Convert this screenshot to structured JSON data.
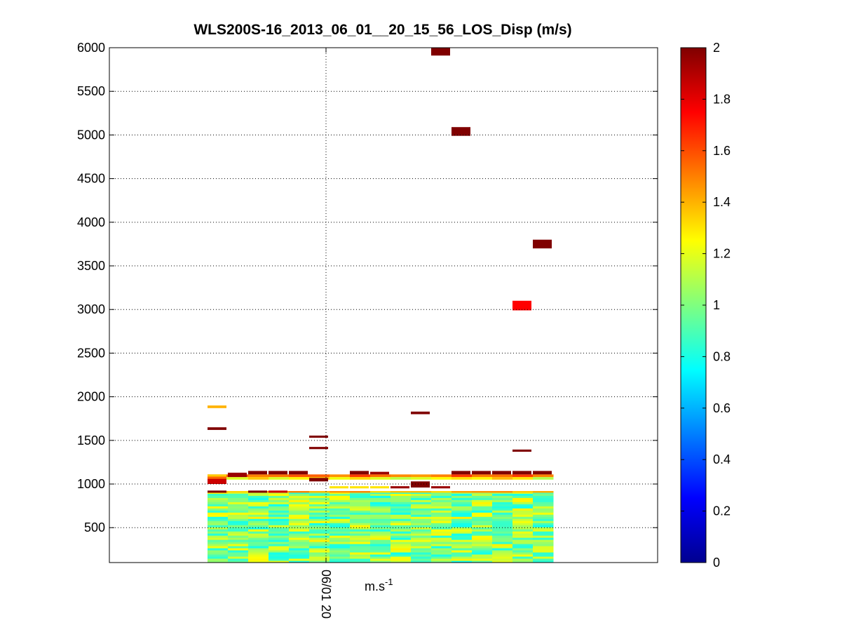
{
  "chart_data": {
    "type": "heatmap",
    "title": "WLS200S-16_2013_06_01__20_15_56_LOS_Disp (m/s)",
    "xlabel": "m.s",
    "xlabel_superscript": "-1",
    "ylabel": "",
    "x_tick_labels": [
      "06/01 20"
    ],
    "y_ticks": [
      500,
      1000,
      1500,
      2000,
      2500,
      3000,
      3500,
      4000,
      4500,
      5000,
      5500,
      6000
    ],
    "ylim": [
      100,
      6000
    ],
    "grid": true,
    "colormap": "jet",
    "colorbar": {
      "range": [
        0,
        2
      ],
      "ticks": [
        0,
        0.2,
        0.4,
        0.6,
        0.8,
        1,
        1.2,
        1.4,
        1.6,
        1.8,
        2
      ]
    },
    "column_count": 17,
    "cells": [
      {
        "col": 0,
        "y0": 1000,
        "y1": 1060,
        "value": 1.85
      },
      {
        "col": 0,
        "y0": 1060,
        "y1": 1085,
        "value": 1.55
      },
      {
        "col": 0,
        "y0": 1085,
        "y1": 1110,
        "value": 1.35
      },
      {
        "col": 0,
        "y0": 1620,
        "y1": 1650,
        "value": 2.0
      },
      {
        "col": 0,
        "y0": 1870,
        "y1": 1900,
        "value": 1.4
      },
      {
        "col": 0,
        "y0": 900,
        "y1": 925,
        "value": 2.0
      },
      {
        "col": 1,
        "y0": 1080,
        "y1": 1130,
        "value": 1.95
      },
      {
        "col": 2,
        "y0": 1110,
        "y1": 1150,
        "value": 2.0
      },
      {
        "col": 3,
        "y0": 1110,
        "y1": 1150,
        "value": 2.0
      },
      {
        "col": 2,
        "y0": 900,
        "y1": 925,
        "value": 2.0
      },
      {
        "col": 3,
        "y0": 900,
        "y1": 925,
        "value": 1.85
      },
      {
        "col": 4,
        "y0": 1110,
        "y1": 1150,
        "value": 2.0
      },
      {
        "col": 5,
        "y0": 1030,
        "y1": 1070,
        "value": 2.0
      },
      {
        "col": 5,
        "y0": 1530,
        "y1": 1555,
        "value": 2.0
      },
      {
        "col": 5,
        "y0": 1400,
        "y1": 1425,
        "value": 2.0
      },
      {
        "col": 6,
        "y0": 950,
        "y1": 975,
        "value": 1.3
      },
      {
        "col": 7,
        "y0": 1110,
        "y1": 1150,
        "value": 2.0
      },
      {
        "col": 7,
        "y0": 950,
        "y1": 975,
        "value": 1.3
      },
      {
        "col": 8,
        "y0": 1110,
        "y1": 1140,
        "value": 1.95
      },
      {
        "col": 8,
        "y0": 950,
        "y1": 975,
        "value": 1.3
      },
      {
        "col": 9,
        "y0": 950,
        "y1": 975,
        "value": 1.95
      },
      {
        "col": 10,
        "y0": 960,
        "y1": 1030,
        "value": 2.0
      },
      {
        "col": 10,
        "y0": 1800,
        "y1": 1830,
        "value": 2.0
      },
      {
        "col": 11,
        "y0": 950,
        "y1": 975,
        "value": 1.95
      },
      {
        "col": 11,
        "y0": 5910,
        "y1": 6000,
        "value": 2.0
      },
      {
        "col": 12,
        "y0": 1110,
        "y1": 1150,
        "value": 2.0
      },
      {
        "col": 12,
        "y0": 4990,
        "y1": 5090,
        "value": 2.0
      },
      {
        "col": 13,
        "y0": 1110,
        "y1": 1150,
        "value": 2.0
      },
      {
        "col": 14,
        "y0": 1110,
        "y1": 1150,
        "value": 2.0
      },
      {
        "col": 15,
        "y0": 2990,
        "y1": 3100,
        "value": 1.75
      },
      {
        "col": 15,
        "y0": 1370,
        "y1": 1395,
        "value": 2.0
      },
      {
        "col": 15,
        "y0": 1110,
        "y1": 1150,
        "value": 2.0
      },
      {
        "col": 16,
        "y0": 3700,
        "y1": 3800,
        "value": 2.0
      },
      {
        "col": 16,
        "y0": 1110,
        "y1": 1150,
        "value": 2.0
      }
    ]
  }
}
